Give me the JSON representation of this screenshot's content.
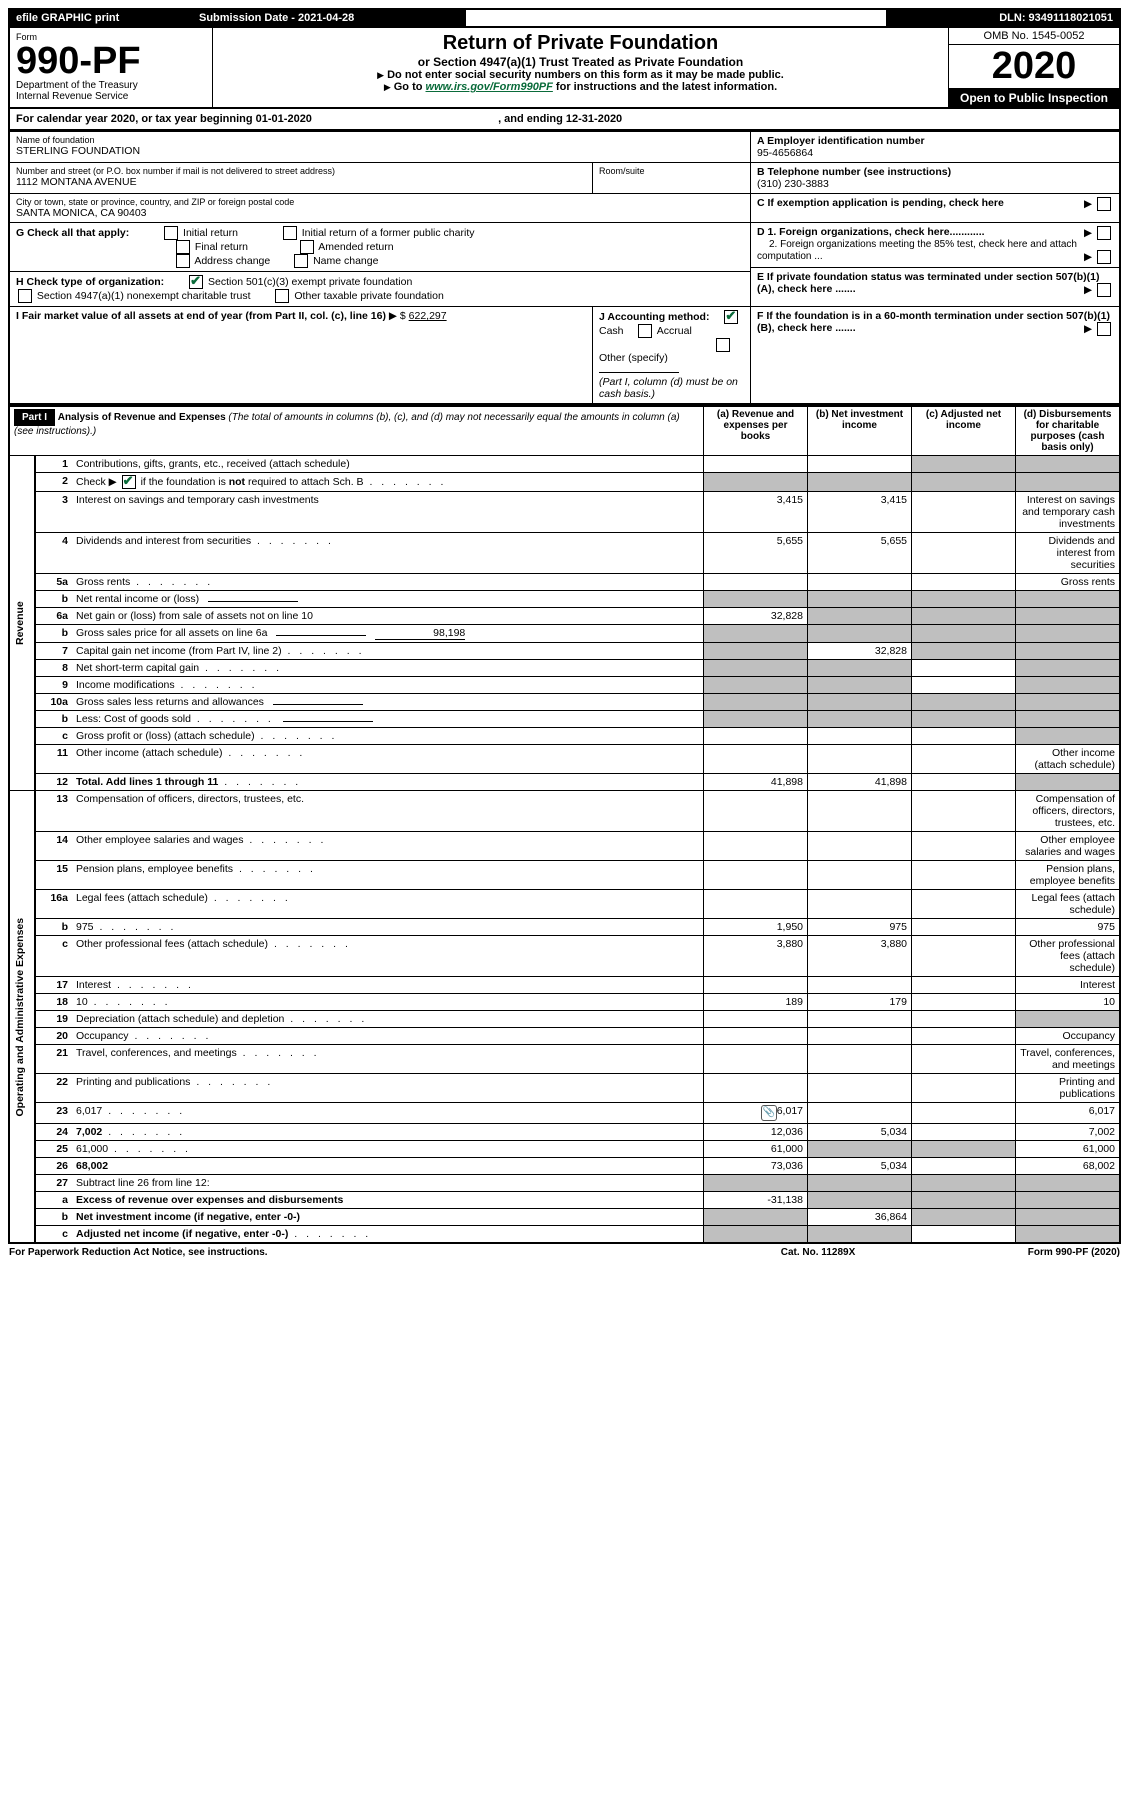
{
  "top_bar": {
    "efile": "efile GRAPHIC print",
    "submission_label": "Submission Date - 2021-04-28",
    "dln": "DLN: 93491118021051"
  },
  "header": {
    "form_word": "Form",
    "form_number": "990-PF",
    "dept": "Department of the Treasury\nInternal Revenue Service",
    "title": "Return of Private Foundation",
    "subtitle": "or Section 4947(a)(1) Trust Treated as Private Foundation",
    "instr1": "Do not enter social security numbers on this form as it may be made public.",
    "instr2_pre": "Go to ",
    "instr2_link": "www.irs.gov/Form990PF",
    "instr2_post": " for instructions and the latest information.",
    "omb": "OMB No. 1545-0052",
    "year": "2020",
    "open": "Open to Public Inspection"
  },
  "calendar_line": {
    "pre": "For calendar year 2020, or tax year beginning ",
    "begin": "01-01-2020",
    "mid": ", and ending ",
    "end": "12-31-2020"
  },
  "info": {
    "name_label": "Name of foundation",
    "name": "STERLING FOUNDATION",
    "addr_label": "Number and street (or P.O. box number if mail is not delivered to street address)",
    "addr": "1112 MONTANA AVENUE",
    "room_label": "Room/suite",
    "city_label": "City or town, state or province, country, and ZIP or foreign postal code",
    "city": "SANTA MONICA, CA  90403",
    "A_label": "A Employer identification number",
    "A_val": "95-4656864",
    "B_label": "B Telephone number (see instructions)",
    "B_val": "(310) 230-3883",
    "C_label": "C If exemption application is pending, check here",
    "D1": "D 1. Foreign organizations, check here............",
    "D2": "2. Foreign organizations meeting the 85% test, check here and attach computation ...",
    "E": "E  If private foundation status was terminated under section 507(b)(1)(A), check here .......",
    "F": "F  If the foundation is in a 60-month termination under section 507(b)(1)(B), check here .......",
    "G_label": "G Check all that apply:",
    "G_opts": [
      "Initial return",
      "Final return",
      "Address change",
      "Initial return of a former public charity",
      "Amended return",
      "Name change"
    ],
    "H_label": "H Check type of organization:",
    "H_opts": [
      "Section 501(c)(3) exempt private foundation",
      "Section 4947(a)(1) nonexempt charitable trust",
      "Other taxable private foundation"
    ],
    "I_label": "I Fair market value of all assets at end of year (from Part II, col. (c), line 16)",
    "I_val": "622,297",
    "J_label": "J Accounting method:",
    "J_opts": [
      "Cash",
      "Accrual",
      "Other (specify)"
    ],
    "J_note": "(Part I, column (d) must be on cash basis.)"
  },
  "part1": {
    "label": "Part I",
    "title": "Analysis of Revenue and Expenses",
    "title_note": "(The total of amounts in columns (b), (c), and (d) may not necessarily equal the amounts in column (a) (see instructions).)",
    "cols": {
      "a": "(a)   Revenue and expenses per books",
      "b": "(b)   Net investment income",
      "c": "(c)   Adjusted net income",
      "d": "(d)   Disbursements for charitable purposes (cash basis only)"
    },
    "side_revenue": "Revenue",
    "side_expenses": "Operating and Administrative Expenses",
    "rows": [
      {
        "n": "1",
        "d": "Contributions, gifts, grants, etc., received (attach schedule)",
        "a": "",
        "b": "",
        "c": "G",
        "d_g": true
      },
      {
        "n": "2",
        "d": "Check ▶ ☑ if the foundation is not required to attach Sch. B",
        "dots": true,
        "a": "G",
        "b": "G",
        "c": "G",
        "d_g": true
      },
      {
        "n": "3",
        "d": "Interest on savings and temporary cash investments",
        "a": "3,415",
        "b": "3,415",
        "raw": true
      },
      {
        "n": "4",
        "d": "Dividends and interest from securities",
        "dots": true,
        "a": "5,655",
        "b": "5,655"
      },
      {
        "n": "5a",
        "d": "Gross rents",
        "dots": true
      },
      {
        "n": "b",
        "d": "Net rental income or (loss)",
        "u": true,
        "a": "G",
        "b": "G",
        "c": "G",
        "d_g": true
      },
      {
        "n": "6a",
        "d": "Net gain or (loss) from sale of assets not on line 10",
        "a": "32,828",
        "b": "G",
        "c": "G",
        "d_g": true
      },
      {
        "n": "b",
        "d": "Gross sales price for all assets on line 6a",
        "u": true,
        "extra": "98,198",
        "a": "G",
        "b": "G",
        "c": "G",
        "d_g": true
      },
      {
        "n": "7",
        "d": "Capital gain net income (from Part IV, line 2)",
        "dots": true,
        "a": "G",
        "b": "32,828",
        "c": "G",
        "d_g": true
      },
      {
        "n": "8",
        "d": "Net short-term capital gain",
        "dots": true,
        "a": "G",
        "b": "G",
        "d_g": true
      },
      {
        "n": "9",
        "d": "Income modifications",
        "dots": true,
        "a": "G",
        "b": "G",
        "d_g": true
      },
      {
        "n": "10a",
        "d": "Gross sales less returns and allowances",
        "u": true,
        "a": "G",
        "b": "G",
        "c": "G",
        "d_g": true
      },
      {
        "n": "b",
        "d": "Less: Cost of goods sold",
        "dots": true,
        "u": true,
        "a": "G",
        "b": "G",
        "c": "G",
        "d_g": true
      },
      {
        "n": "c",
        "d": "Gross profit or (loss) (attach schedule)",
        "dots": true,
        "d_g": true
      },
      {
        "n": "11",
        "d": "Other income (attach schedule)",
        "dots": true
      },
      {
        "n": "12",
        "d": "Total. Add lines 1 through 11",
        "dots": true,
        "bold": true,
        "a": "41,898",
        "b": "41,898",
        "d_g": true
      },
      {
        "n": "13",
        "d": "Compensation of officers, directors, trustees, etc."
      },
      {
        "n": "14",
        "d": "Other employee salaries and wages",
        "dots": true
      },
      {
        "n": "15",
        "d": "Pension plans, employee benefits",
        "dots": true
      },
      {
        "n": "16a",
        "d": "Legal fees (attach schedule)",
        "dots": true
      },
      {
        "n": "b",
        "d": "975",
        "dots": true,
        "a": "1,950",
        "b": "975"
      },
      {
        "n": "c",
        "d": "Other professional fees (attach schedule)",
        "dots": true,
        "a": "3,880",
        "b": "3,880"
      },
      {
        "n": "17",
        "d": "Interest",
        "dots": true
      },
      {
        "n": "18",
        "d": "10",
        "dots": true,
        "a": "189",
        "b": "179"
      },
      {
        "n": "19",
        "d": "Depreciation (attach schedule) and depletion",
        "dots": true,
        "d_g": true
      },
      {
        "n": "20",
        "d": "Occupancy",
        "dots": true
      },
      {
        "n": "21",
        "d": "Travel, conferences, and meetings",
        "dots": true
      },
      {
        "n": "22",
        "d": "Printing and publications",
        "dots": true
      },
      {
        "n": "23",
        "d": "6,017",
        "dots": true,
        "icon": true,
        "a": "6,017"
      },
      {
        "n": "24",
        "d": "7,002",
        "dots": true,
        "bold": true,
        "a": "12,036",
        "b": "5,034"
      },
      {
        "n": "25",
        "d": "61,000",
        "dots": true,
        "a": "61,000",
        "b": "G",
        "c": "G"
      },
      {
        "n": "26",
        "d": "68,002",
        "bold": true,
        "a": "73,036",
        "b": "5,034"
      },
      {
        "n": "27",
        "d": "Subtract line 26 from line 12:",
        "a": "G",
        "b": "G",
        "c": "G",
        "d_g": true
      },
      {
        "n": "a",
        "d": "Excess of revenue over expenses and disbursements",
        "bold": true,
        "a": "-31,138",
        "b": "G",
        "c": "G",
        "d_g": true
      },
      {
        "n": "b",
        "d": "Net investment income (if negative, enter -0-)",
        "bold": true,
        "a": "G",
        "b": "36,864",
        "c": "G",
        "d_g": true
      },
      {
        "n": "c",
        "d": "Adjusted net income (if negative, enter -0-)",
        "dots": true,
        "bold": true,
        "a": "G",
        "b": "G",
        "d_g": true
      }
    ]
  },
  "footer": {
    "left": "For Paperwork Reduction Act Notice, see instructions.",
    "mid": "Cat. No. 11289X",
    "right": "Form 990-PF (2020)"
  }
}
